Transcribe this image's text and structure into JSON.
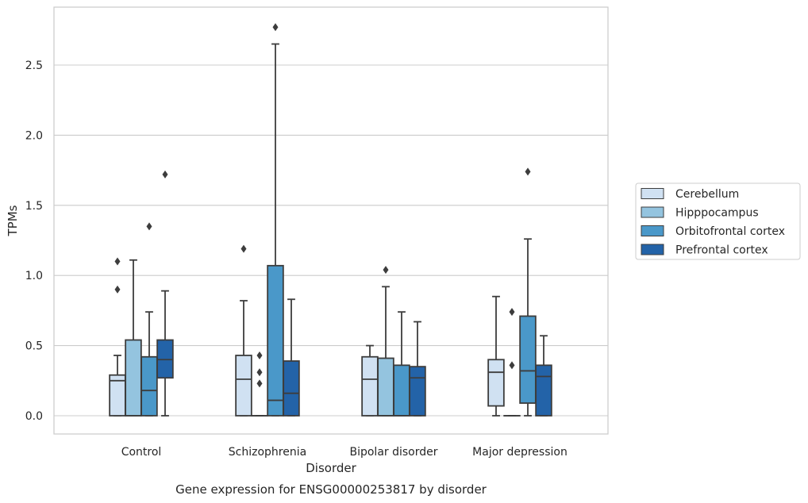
{
  "chart_data": {
    "type": "box",
    "caption": "Gene expression for ENSG00000253817 by disorder",
    "xlabel": "Disorder",
    "ylabel": "TPMs",
    "ylim": [
      -0.13,
      2.92
    ],
    "yticks": [
      "0.0",
      "0.5",
      "1.0",
      "1.5",
      "2.0",
      "2.5"
    ],
    "ytick_values": [
      0,
      0.5,
      1.0,
      1.5,
      2.0,
      2.5
    ],
    "grid": true,
    "legend_position": "right",
    "categories": [
      "Control",
      "Schizophrenia",
      "Bipolar disorder",
      "Major depression"
    ],
    "series": [
      {
        "name": "Cerebellum",
        "color": "#d0e1f2",
        "boxes": [
          {
            "whislo": 0.0,
            "q1": 0.0,
            "med": 0.25,
            "q3": 0.29,
            "whishi": 0.43,
            "fliers": [
              0.9,
              1.1
            ]
          },
          {
            "whislo": 0.0,
            "q1": 0.0,
            "med": 0.26,
            "q3": 0.43,
            "whishi": 0.82,
            "fliers": [
              1.19
            ]
          },
          {
            "whislo": 0.0,
            "q1": 0.0,
            "med": 0.26,
            "q3": 0.42,
            "whishi": 0.5,
            "fliers": []
          },
          {
            "whislo": 0.0,
            "q1": 0.07,
            "med": 0.31,
            "q3": 0.4,
            "whishi": 0.85,
            "fliers": []
          }
        ]
      },
      {
        "name": "Hipppocampus",
        "color": "#94c4df",
        "boxes": [
          {
            "whislo": 0.0,
            "q1": 0.0,
            "med": 0.0,
            "q3": 0.54,
            "whishi": 1.11,
            "fliers": []
          },
          {
            "whislo": 0.0,
            "q1": 0.0,
            "med": 0.0,
            "q3": 0.0,
            "whishi": 0.0,
            "fliers": [
              0.23,
              0.31,
              0.43
            ]
          },
          {
            "whislo": 0.0,
            "q1": 0.0,
            "med": 0.0,
            "q3": 0.41,
            "whishi": 0.92,
            "fliers": [
              1.04
            ]
          },
          {
            "whislo": 0.0,
            "q1": 0.0,
            "med": 0.0,
            "q3": 0.0,
            "whishi": 0.0,
            "fliers": [
              0.36,
              0.74
            ]
          }
        ]
      },
      {
        "name": "Orbitofrontal cortex",
        "color": "#4a98c9",
        "boxes": [
          {
            "whislo": 0.0,
            "q1": 0.0,
            "med": 0.18,
            "q3": 0.42,
            "whishi": 0.74,
            "fliers": [
              1.35
            ]
          },
          {
            "whislo": 0.0,
            "q1": 0.0,
            "med": 0.11,
            "q3": 1.07,
            "whishi": 2.65,
            "fliers": [
              2.77
            ]
          },
          {
            "whislo": 0.0,
            "q1": 0.0,
            "med": 0.0,
            "q3": 0.36,
            "whishi": 0.74,
            "fliers": []
          },
          {
            "whislo": 0.0,
            "q1": 0.09,
            "med": 0.32,
            "q3": 0.71,
            "whishi": 1.26,
            "fliers": [
              1.74
            ]
          }
        ]
      },
      {
        "name": "Prefrontal cortex",
        "color": "#2363a8",
        "boxes": [
          {
            "whislo": 0.0,
            "q1": 0.27,
            "med": 0.4,
            "q3": 0.54,
            "whishi": 0.89,
            "fliers": [
              1.72
            ]
          },
          {
            "whislo": 0.0,
            "q1": 0.0,
            "med": 0.16,
            "q3": 0.39,
            "whishi": 0.83,
            "fliers": []
          },
          {
            "whislo": 0.0,
            "q1": 0.0,
            "med": 0.27,
            "q3": 0.35,
            "whishi": 0.67,
            "fliers": []
          },
          {
            "whislo": 0.0,
            "q1": 0.0,
            "med": 0.28,
            "q3": 0.36,
            "whishi": 0.57,
            "fliers": []
          }
        ]
      }
    ]
  }
}
